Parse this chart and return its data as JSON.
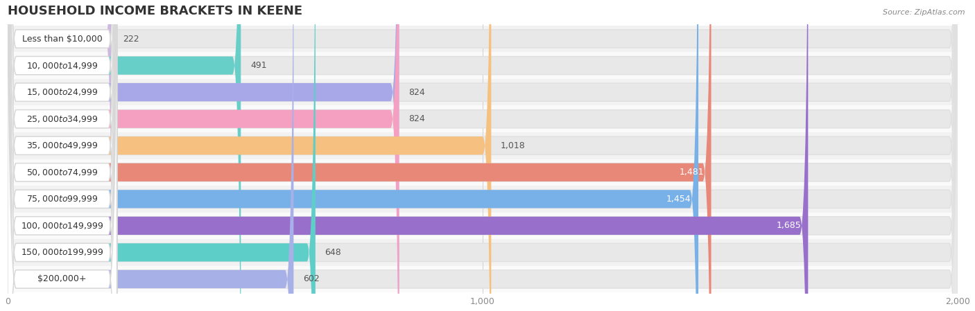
{
  "title": "HOUSEHOLD INCOME BRACKETS IN KEENE",
  "source": "Source: ZipAtlas.com",
  "categories": [
    "Less than $10,000",
    "$10,000 to $14,999",
    "$15,000 to $24,999",
    "$25,000 to $34,999",
    "$35,000 to $49,999",
    "$50,000 to $74,999",
    "$75,000 to $99,999",
    "$100,000 to $149,999",
    "$150,000 to $199,999",
    "$200,000+"
  ],
  "values": [
    222,
    491,
    824,
    824,
    1018,
    1481,
    1454,
    1685,
    648,
    602
  ],
  "colors": [
    "#cdb8e0",
    "#68cfc8",
    "#a8a8e8",
    "#f5a0c0",
    "#f5c080",
    "#e88878",
    "#78b0e8",
    "#9870cc",
    "#5ecec8",
    "#a8b0e8"
  ],
  "xlim": [
    0,
    2000
  ],
  "xticks": [
    0,
    1000,
    2000
  ],
  "title_fontsize": 13,
  "label_fontsize": 9,
  "value_fontsize": 9,
  "row_bg_colors": [
    "#f2f2f2",
    "#fafafa"
  ]
}
